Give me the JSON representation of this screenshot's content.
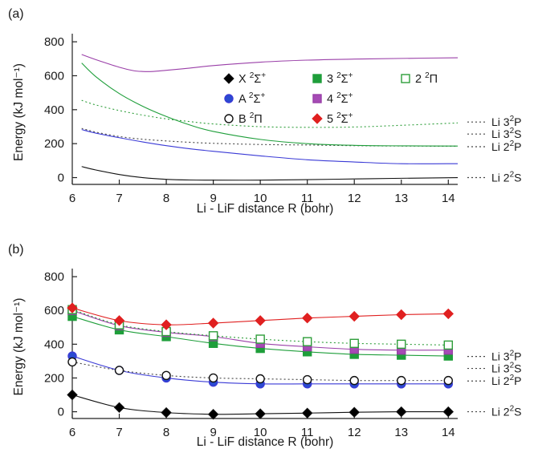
{
  "panels": [
    {
      "label": "(a)",
      "xlabel": "Li - LiF distance R (bohr)",
      "ylabel": "Energy (kJ mol⁻¹)",
      "xticks": [
        6,
        7,
        8,
        9,
        10,
        11,
        12,
        13,
        14
      ],
      "yticks": [
        0,
        200,
        400,
        600,
        800
      ],
      "markers": false
    },
    {
      "label": "(b)",
      "xlabel": "Li - LiF distance R (bohr)",
      "ylabel": "Energy (kJ mol⁻¹)",
      "xticks": [
        6,
        7,
        8,
        9,
        10,
        11,
        12,
        13,
        14
      ],
      "yticks": [
        0,
        200,
        400,
        600,
        800
      ],
      "markers": true
    }
  ],
  "legend": [
    {
      "key": "X",
      "base": "X ",
      "sup": "2",
      "mid": "Σ",
      "sup2": "+"
    },
    {
      "key": "S3",
      "base": "3 ",
      "sup": "2",
      "mid": "Σ",
      "sup2": "+"
    },
    {
      "key": "P2",
      "base": "2 ",
      "sup": "2",
      "mid": "Π",
      "sup2": ""
    },
    {
      "key": "A",
      "base": "A ",
      "sup": "2",
      "mid": "Σ",
      "sup2": "+"
    },
    {
      "key": "S4",
      "base": "4 ",
      "sup": "2",
      "mid": "Σ",
      "sup2": "+"
    },
    {
      "key": "B",
      "base": "B ",
      "sup": "2",
      "mid": "Π",
      "sup2": ""
    },
    {
      "key": "S5",
      "base": "5 ",
      "sup": "2",
      "mid": "Σ",
      "sup2": "+"
    }
  ],
  "asymptotes": [
    {
      "pre": "Li 3",
      "sup": "2",
      "post": "P",
      "energy": 318
    },
    {
      "pre": "Li 3",
      "sup": "2",
      "post": "S",
      "energy": 285
    },
    {
      "pre": "Li 2",
      "sup": "2",
      "post": "P",
      "energy": 182
    },
    {
      "pre": "Li 2",
      "sup": "2",
      "post": "S",
      "energy": 0
    }
  ],
  "series_styles": {
    "X": {
      "color": "#111111",
      "marker": "diamond",
      "fill": "#000000",
      "dash": ""
    },
    "A": {
      "color": "#3a3ad6",
      "marker": "circle",
      "fill": "#2a4bd0",
      "dash": ""
    },
    "B": {
      "color": "#444444",
      "marker": "circle",
      "fill": "none",
      "dash": "2,3"
    },
    "S3": {
      "color": "#1e9e3a",
      "marker": "square",
      "fill": "#1e9e3a",
      "dash": ""
    },
    "S4": {
      "color": "#9a3fa8",
      "marker": "square",
      "fill": "#a64bb5",
      "dash": ""
    },
    "P2": {
      "color": "#2e9e3a",
      "marker": "square",
      "fill": "none",
      "dash": "2,3"
    },
    "S5": {
      "color": "#e02020",
      "marker": "diamond",
      "fill": "#e02020",
      "dash": ""
    }
  },
  "chart_data": [
    {
      "type": "line",
      "title": "(a)",
      "xlabel": "Li - LiF distance R (bohr)",
      "ylabel": "Energy (kJ mol⁻¹)",
      "xlim": [
        6,
        14.2
      ],
      "ylim": [
        -40,
        810
      ],
      "grid": false,
      "legend_position": "center-right",
      "series": [
        {
          "key": "X",
          "x": [
            6.2,
            6.5,
            7,
            7.5,
            8,
            8.5,
            9,
            10,
            11,
            12,
            13,
            14.2
          ],
          "values": [
            65,
            45,
            18,
            0,
            -10,
            -14,
            -15,
            -15,
            -12,
            -8,
            -4,
            0
          ]
        },
        {
          "key": "A",
          "x": [
            6.2,
            6.5,
            7,
            7.5,
            8,
            8.5,
            9,
            10,
            11,
            12,
            13,
            14.2
          ],
          "values": [
            283,
            262,
            235,
            210,
            188,
            170,
            155,
            128,
            105,
            92,
            82,
            82
          ]
        },
        {
          "key": "B",
          "x": [
            6.2,
            6.5,
            7,
            7.5,
            8,
            8.5,
            9,
            10,
            11,
            12,
            13,
            14.2
          ],
          "values": [
            290,
            268,
            242,
            226,
            216,
            208,
            202,
            195,
            192,
            188,
            186,
            185
          ]
        },
        {
          "key": "S3",
          "x": [
            6.2,
            6.5,
            7,
            7.5,
            8,
            8.5,
            9,
            10,
            11,
            12,
            13,
            14.2
          ],
          "values": [
            675,
            595,
            495,
            420,
            360,
            310,
            272,
            225,
            200,
            190,
            187,
            186
          ]
        },
        {
          "key": "P2",
          "x": [
            6.2,
            6.5,
            7,
            7.5,
            8,
            8.5,
            9,
            10,
            11,
            12,
            13,
            14.2
          ],
          "values": [
            455,
            428,
            395,
            368,
            346,
            330,
            316,
            300,
            296,
            298,
            308,
            322
          ]
        },
        {
          "key": "S4",
          "x": [
            6.2,
            6.5,
            7,
            7.3,
            7.5,
            7.7,
            8,
            8.5,
            9,
            10,
            11,
            12,
            13,
            14.2
          ],
          "values": [
            725,
            695,
            650,
            630,
            625,
            625,
            632,
            645,
            660,
            680,
            692,
            698,
            702,
            706
          ]
        }
      ]
    },
    {
      "type": "scatter",
      "title": "(b)",
      "xlabel": "Li - LiF distance R (bohr)",
      "ylabel": "Energy (kJ mol⁻¹)",
      "xlim": [
        6,
        14.2
      ],
      "ylim": [
        -40,
        810
      ],
      "grid": false,
      "series": [
        {
          "key": "X",
          "x": [
            6,
            7,
            8,
            9,
            10,
            11,
            12,
            13,
            14
          ],
          "values": [
            100,
            25,
            -5,
            -15,
            -12,
            -8,
            -3,
            0,
            0
          ]
        },
        {
          "key": "A",
          "x": [
            6,
            7,
            8,
            9,
            10,
            11,
            12,
            13,
            14
          ],
          "values": [
            330,
            245,
            200,
            175,
            165,
            165,
            165,
            165,
            165
          ]
        },
        {
          "key": "B",
          "x": [
            6,
            7,
            8,
            9,
            10,
            11,
            12,
            13,
            14
          ],
          "values": [
            295,
            245,
            215,
            200,
            195,
            190,
            185,
            185,
            185
          ]
        },
        {
          "key": "S3",
          "x": [
            6,
            7,
            8,
            9,
            10,
            11,
            12,
            13,
            14
          ],
          "values": [
            565,
            485,
            445,
            405,
            375,
            355,
            340,
            335,
            330
          ]
        },
        {
          "key": "S4",
          "x": [
            6,
            7,
            8,
            9,
            10,
            11,
            12,
            13,
            14
          ],
          "values": [
            600,
            510,
            470,
            445,
            405,
            385,
            370,
            365,
            365
          ]
        },
        {
          "key": "P2",
          "x": [
            6,
            7,
            8,
            9,
            10,
            11,
            12,
            13,
            14
          ],
          "values": [
            605,
            515,
            475,
            450,
            430,
            415,
            405,
            400,
            395
          ]
        },
        {
          "key": "S5",
          "x": [
            6,
            7,
            8,
            9,
            10,
            11,
            12,
            13,
            14
          ],
          "values": [
            615,
            540,
            515,
            525,
            540,
            555,
            565,
            575,
            580
          ]
        }
      ]
    }
  ]
}
